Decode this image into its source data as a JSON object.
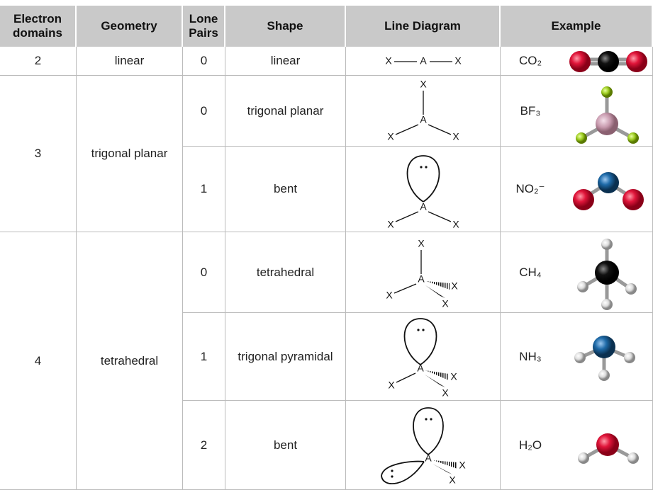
{
  "table": {
    "header": [
      "Electron domains",
      "Geometry",
      "Lone Pairs",
      "Shape",
      "Line Diagram",
      "Example"
    ],
    "rows": [
      {
        "domains": 2,
        "geometry": "linear",
        "lone_pairs": 0,
        "shape": "linear",
        "diagram": [
          "X",
          "A",
          "X"
        ],
        "example": "CO₂"
      },
      {
        "domains": 3,
        "geometry": "trigonal planar",
        "lone_pairs": 0,
        "shape": "trigonal planar",
        "diagram": [
          "X",
          "A",
          "X",
          "X"
        ],
        "example": "BF₃"
      },
      {
        "lone_pairs": 1,
        "shape": "bent",
        "diagram": [
          "A",
          "X",
          "X"
        ],
        "example": "NO₂⁻"
      },
      {
        "domains": 4,
        "geometry": "tetrahedral",
        "lone_pairs": 0,
        "shape": "tetrahedral",
        "diagram": [
          "X",
          "A",
          "X",
          "X",
          "X"
        ],
        "example": "CH₄"
      },
      {
        "lone_pairs": 1,
        "shape": "trigonal pyramidal",
        "diagram": [
          "A",
          "X",
          "X",
          "X"
        ],
        "example": "NH₃"
      },
      {
        "lone_pairs": 2,
        "shape": "bent",
        "diagram": [
          "A",
          "X",
          "X"
        ],
        "example": "H₂O"
      }
    ]
  }
}
